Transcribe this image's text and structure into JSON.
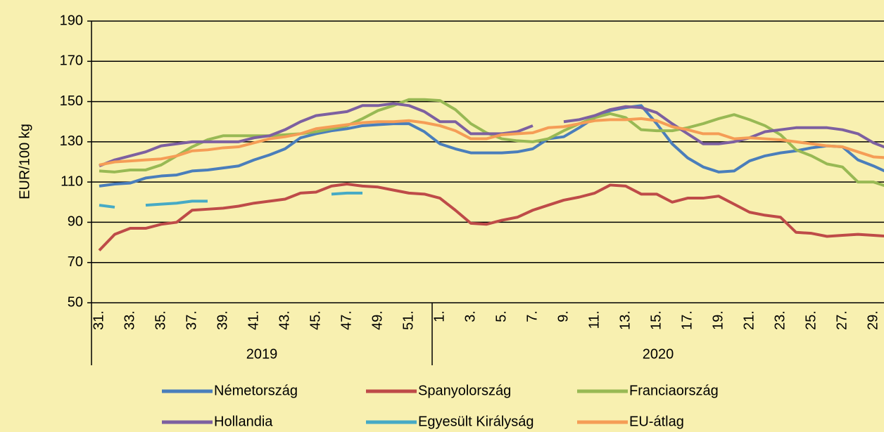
{
  "chart_data": {
    "type": "line",
    "ylabel": "EUR/100 kg",
    "categories": [
      "31.",
      null,
      "33.",
      null,
      "35.",
      null,
      "37.",
      null,
      "39.",
      null,
      "41.",
      null,
      "43.",
      null,
      "45.",
      null,
      "47.",
      null,
      "49.",
      null,
      "51.",
      null,
      "1.",
      null,
      "3.",
      null,
      "5.",
      null,
      "7.",
      null,
      "9.",
      null,
      "11.",
      null,
      "13.",
      null,
      "15.",
      null,
      "17.",
      null,
      "19.",
      null,
      "21.",
      null,
      "23.",
      null,
      "25.",
      null,
      "27.",
      null,
      "29.",
      null
    ],
    "groups": [
      {
        "name": "2019",
        "size": 22
      },
      {
        "name": "2020",
        "size": 30
      }
    ],
    "ylim": [
      50,
      190
    ],
    "yticks": [
      50,
      70,
      90,
      110,
      130,
      150,
      170,
      190
    ],
    "grid": true,
    "series": [
      {
        "name": "Németország",
        "color": "#4a7ebb",
        "values": [
          108,
          109,
          109.5,
          112,
          113,
          113.5,
          115.5,
          116,
          117,
          118,
          121,
          123.5,
          126.5,
          132,
          134,
          135.5,
          136.5,
          138,
          138.5,
          139,
          139,
          135,
          129,
          126.5,
          124.5,
          124.5,
          124.5,
          125,
          126.5,
          131.5,
          132.5,
          137,
          142,
          145.5,
          147,
          148,
          139,
          129,
          122,
          117.5,
          115,
          115.5,
          120.5,
          123,
          124.5,
          125.5,
          127,
          128,
          127.5,
          121,
          118,
          114.5
        ]
      },
      {
        "name": "Spanyolország",
        "color": "#be4b48",
        "values": [
          76,
          84,
          87,
          87,
          89,
          90,
          96,
          96.5,
          97,
          98,
          99.5,
          100.5,
          101.5,
          104.5,
          105,
          108,
          109,
          108,
          107.5,
          106,
          104.5,
          104,
          102,
          96,
          89.5,
          89,
          91,
          92.5,
          96,
          98.5,
          101,
          102.5,
          104.5,
          108.5,
          108,
          104,
          104,
          100,
          102,
          102,
          103,
          99,
          95,
          93.5,
          92.5,
          85,
          84.5,
          83,
          83.5,
          84,
          83.5,
          83
        ]
      },
      {
        "name": "Franciaország",
        "color": "#98b954",
        "values": [
          115.5,
          115,
          116,
          116,
          118.5,
          123,
          127.5,
          131,
          133,
          133,
          133,
          133,
          133.5,
          134,
          135,
          136.5,
          138,
          141.5,
          145.5,
          148,
          151,
          151,
          150.5,
          146,
          139,
          134.5,
          131.5,
          130.5,
          130,
          131.5,
          135.5,
          139,
          142,
          144,
          142,
          136,
          135.5,
          135.5,
          137,
          139,
          141.5,
          143.5,
          141,
          138,
          133.5,
          126,
          123,
          119,
          117.5,
          110,
          110,
          107.5
        ]
      },
      {
        "name": "Hollandia",
        "color": "#7d60a0",
        "values": [
          118,
          121,
          123,
          125,
          128,
          129,
          130,
          130,
          130,
          130,
          132,
          133,
          136,
          140,
          143,
          144,
          145,
          148,
          148,
          149,
          148,
          145,
          140,
          140,
          134,
          134,
          134,
          135,
          138,
          null,
          140,
          141,
          143,
          146,
          147.5,
          147,
          144.5,
          139,
          134,
          129,
          129,
          130,
          132,
          135,
          136,
          137,
          137,
          137,
          136,
          134,
          129.5,
          126.5
        ]
      },
      {
        "name": "Egyesült Királyság",
        "color": "#46aac5",
        "values": [
          98.5,
          97.5,
          null,
          98.5,
          99,
          99.5,
          100.5,
          100.5,
          null,
          null,
          null,
          null,
          null,
          null,
          null,
          104,
          104.5,
          104.5,
          null,
          null,
          null,
          null,
          null,
          null,
          null,
          null,
          null,
          null,
          null,
          null,
          null,
          null,
          null,
          null,
          null,
          null,
          null,
          null,
          null,
          null,
          null,
          null,
          null,
          null,
          null,
          null,
          null,
          null,
          null,
          null,
          null,
          null
        ]
      },
      {
        "name": "EU-átlag",
        "color": "#f59d56",
        "values": [
          118.5,
          120,
          120.5,
          121,
          121.5,
          123,
          125.5,
          126,
          127,
          127.5,
          129.5,
          131.5,
          132.5,
          134,
          136.5,
          137.5,
          138.5,
          139.5,
          140,
          140,
          140.5,
          139.5,
          138,
          135.5,
          131.5,
          131.5,
          133.5,
          134,
          134.5,
          137,
          137.5,
          139,
          140.5,
          141,
          141,
          141.5,
          140.5,
          137.5,
          136,
          134,
          134,
          131.5,
          132,
          131.5,
          131,
          130,
          129,
          128,
          127.5,
          125,
          122.5,
          122
        ]
      }
    ]
  }
}
